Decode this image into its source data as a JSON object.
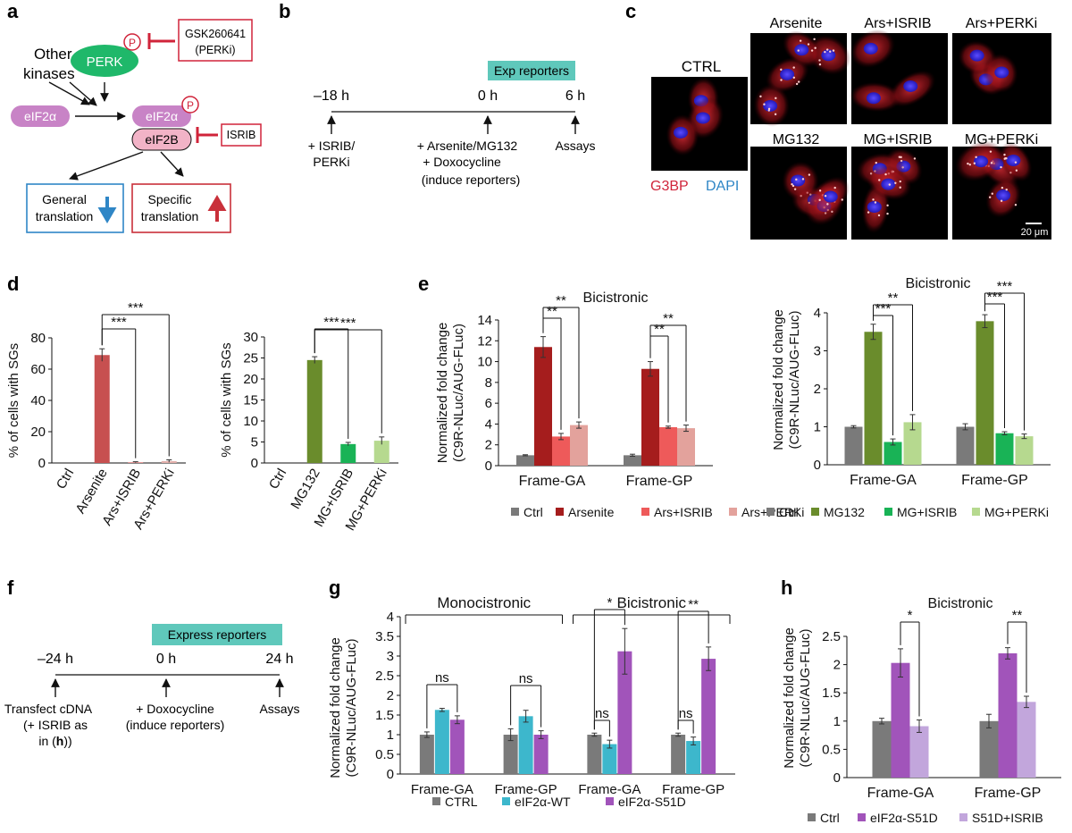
{
  "panel_labels": {
    "a": "a",
    "b": "b",
    "c": "c",
    "d": "d",
    "e": "e",
    "f": "f",
    "g": "g",
    "h": "h"
  },
  "colors": {
    "ctrl": "#7a7a7a",
    "arsenite": "#a51d1d",
    "ars_isrib": "#ee5a5a",
    "ars_perki": "#e3a29c",
    "mg132": "#6a8c2c",
    "mg_isrib": "#19b356",
    "mg_perki": "#b6d98f",
    "wt": "#3db7cc",
    "s51d": "#a154ba",
    "s51d_isrib": "#c2a6dc",
    "inhibit": "#d0243a",
    "kinase": "#1fb86a",
    "eif": "#c883c6",
    "eif2b": "#f2b3c7",
    "general_box": "#2f86c6",
    "specific_box": "#c9303a",
    "teal": "#5fc8bb"
  },
  "panel_a": {
    "perk": "PERK",
    "phospho": "P",
    "other_kinases_1": "Other",
    "other_kinases_2": "kinases",
    "eif2a": "eIF2α",
    "eif2a_p": "eIF2α",
    "eif2b": "eIF2B",
    "gsk_1": "GSK260641",
    "gsk_2": "(PERKi)",
    "isrib": "ISRIB",
    "general_1": "General",
    "general_2": "translation",
    "specific_1": "Specific",
    "specific_2": "translation"
  },
  "panel_b": {
    "exp_reporters": "Exp reporters",
    "t1": "–18 h",
    "t2": "0 h",
    "t3": "6 h",
    "l1a": "+ ISRIB/",
    "l1b": "PERKi",
    "l2a": "+ Arsenite/MG132",
    "l2b": "+ Doxocycline",
    "l2c": "(induce reporters)",
    "l3": "Assays"
  },
  "panel_c": {
    "ctrl": "CTRL",
    "arsenite": "Arsenite",
    "ars_isrib": "Ars+ISRIB",
    "ars_perki": "Ars+PERKi",
    "mg132": "MG132",
    "mg_isrib": "MG+ISRIB",
    "mg_perki": "MG+PERKi",
    "g3bp": "G3BP",
    "dapi": "DAPI",
    "scale": "20 μm"
  },
  "panel_f": {
    "express_reporters": "Express reporters",
    "t1": "–24 h",
    "t2": "0 h",
    "t3": "24 h",
    "l1a": "Transfect cDNA",
    "l1b": "(+ ISRIB as",
    "l1c_pre": "in (",
    "l1c_bold": "h",
    "l1c_post": "))",
    "l2a": "+ Doxocycline",
    "l2b": "(induce reporters)",
    "l3": "Assays"
  },
  "chart_data": [
    {
      "id": "d1",
      "type": "bar",
      "categories": [
        "Ctrl",
        "Arsenite",
        "Ars+ISRIB",
        "Ars+PERKi"
      ],
      "values": [
        0,
        69,
        0.5,
        1.2
      ],
      "errors": [
        0,
        4,
        0.3,
        0.8
      ],
      "colors": [
        "#7a7a7a",
        "#c75050",
        "#e58c8c",
        "#e3b0ac"
      ],
      "title": "",
      "xlabel": "",
      "ylabel": "% of cells with SGs",
      "ylim": [
        0,
        80
      ],
      "yticks": [
        "0",
        "20",
        "40",
        "60",
        "80"
      ],
      "significance": [
        {
          "from": 1,
          "to": 2,
          "label": "***"
        },
        {
          "from": 1,
          "to": 3,
          "label": "***"
        }
      ]
    },
    {
      "id": "d2",
      "type": "bar",
      "categories": [
        "Ctrl",
        "MG132",
        "MG+ISRIB",
        "MG+PERKi"
      ],
      "values": [
        0,
        24.5,
        4.5,
        5.3
      ],
      "errors": [
        0,
        0.8,
        0.4,
        0.9
      ],
      "colors": [
        "#7a7a7a",
        "#6a8c2c",
        "#19b356",
        "#b6d98f"
      ],
      "title": "",
      "xlabel": "",
      "ylabel": "% of cells with SGs",
      "ylim": [
        0,
        30
      ],
      "yticks": [
        "0",
        "5",
        "10",
        "15",
        "20",
        "25",
        "30"
      ],
      "significance": [
        {
          "from": 1,
          "to": 2,
          "label": "***"
        },
        {
          "from": 1,
          "to": 3,
          "label": "***"
        }
      ]
    },
    {
      "id": "e1",
      "type": "bar",
      "title": "Bicistronic",
      "ylabel_1": "Normalized fold change",
      "ylabel_2": "(C9R-NLuc/AUG-FLuc)",
      "categories": [
        "Frame-GA",
        "Frame-GP"
      ],
      "series": [
        {
          "name": "Ctrl",
          "color": "#7a7a7a",
          "values": [
            1.0,
            1.0
          ],
          "errors": [
            0.05,
            0.1
          ]
        },
        {
          "name": "Arsenite",
          "color": "#a51d1d",
          "values": [
            11.4,
            9.3
          ],
          "errors": [
            1.0,
            0.7
          ]
        },
        {
          "name": "Ars+ISRIB",
          "color": "#ee5a5a",
          "values": [
            2.8,
            3.7
          ],
          "errors": [
            0.3,
            0.1
          ]
        },
        {
          "name": "Ars+PERKi",
          "color": "#e3a29c",
          "values": [
            3.9,
            3.6
          ],
          "errors": [
            0.3,
            0.3
          ]
        }
      ],
      "ylim": [
        0,
        14
      ],
      "yticks": [
        "0",
        "2",
        "4",
        "6",
        "8",
        "10",
        "12",
        "14"
      ],
      "significance": [
        {
          "group": 0,
          "from": 1,
          "to": 2,
          "label": "**"
        },
        {
          "group": 0,
          "from": 1,
          "to": 3,
          "label": "**"
        },
        {
          "group": 1,
          "from": 1,
          "to": 2,
          "label": "**"
        },
        {
          "group": 1,
          "from": 1,
          "to": 3,
          "label": "**"
        }
      ]
    },
    {
      "id": "e2",
      "type": "bar",
      "title": "Bicistronic",
      "ylabel_1": "Normalized fold change",
      "ylabel_2": "(C9R-NLuc/AUG-FLuc)",
      "categories": [
        "Frame-GA",
        "Frame-GP"
      ],
      "series": [
        {
          "name": "Ctrl",
          "color": "#7a7a7a",
          "values": [
            1.0,
            1.0
          ],
          "errors": [
            0.03,
            0.08
          ]
        },
        {
          "name": "MG132",
          "color": "#6a8c2c",
          "values": [
            3.5,
            3.78
          ],
          "errors": [
            0.2,
            0.17
          ]
        },
        {
          "name": "MG+ISRIB",
          "color": "#19b356",
          "values": [
            0.6,
            0.83
          ],
          "errors": [
            0.08,
            0.04
          ]
        },
        {
          "name": "MG+PERKi",
          "color": "#b6d98f",
          "values": [
            1.12,
            0.75
          ],
          "errors": [
            0.2,
            0.06
          ]
        }
      ],
      "ylim": [
        0,
        4
      ],
      "yticks": [
        "0",
        "1",
        "2",
        "3",
        "4"
      ],
      "significance": [
        {
          "group": 0,
          "from": 1,
          "to": 2,
          "label": "***"
        },
        {
          "group": 0,
          "from": 1,
          "to": 3,
          "label": "**"
        },
        {
          "group": 1,
          "from": 1,
          "to": 2,
          "label": "***"
        },
        {
          "group": 1,
          "from": 1,
          "to": 3,
          "label": "***"
        }
      ]
    },
    {
      "id": "g",
      "type": "bar",
      "title": "",
      "ylabel_1": "Normalized fold change",
      "ylabel_2": "(C9R-NLuc/AUG-FLuc)",
      "categories": [
        "Frame-GA",
        "Frame-GP",
        "Frame-GA",
        "Frame-GP"
      ],
      "group_labels": [
        {
          "label": "Monocistronic",
          "from": 0,
          "to": 1
        },
        {
          "label": "Bicistronic",
          "from": 2,
          "to": 3
        }
      ],
      "series": [
        {
          "name": "CTRL",
          "color": "#7a7a7a",
          "values": [
            1.0,
            1.0,
            1.0,
            1.0
          ],
          "errors": [
            0.07,
            0.15,
            0.04,
            0.04
          ]
        },
        {
          "name": "eIF2α-WT",
          "color": "#3db7cc",
          "values": [
            1.63,
            1.47,
            0.76,
            0.84
          ],
          "errors": [
            0.04,
            0.15,
            0.1,
            0.1
          ]
        },
        {
          "name": "eIF2α-S51D",
          "color": "#a154ba",
          "values": [
            1.38,
            1.0,
            3.12,
            2.93
          ],
          "errors": [
            0.1,
            0.1,
            0.58,
            0.3
          ]
        }
      ],
      "ylim": [
        0,
        4
      ],
      "yticks": [
        "0",
        "0.5",
        "1",
        "1.5",
        "2",
        "2.5",
        "3",
        "3.5",
        "4"
      ],
      "significance": [
        {
          "group": 0,
          "from": 0,
          "to": 2,
          "label": "ns"
        },
        {
          "group": 1,
          "from": 0,
          "to": 2,
          "label": "ns"
        },
        {
          "group": 2,
          "from": 0,
          "to": 1,
          "label": "ns"
        },
        {
          "group": 2,
          "from": 0,
          "to": 2,
          "label": "*"
        },
        {
          "group": 3,
          "from": 0,
          "to": 1,
          "label": "ns"
        },
        {
          "group": 3,
          "from": 0,
          "to": 2,
          "label": "**"
        }
      ]
    },
    {
      "id": "h",
      "type": "bar",
      "title": "Bicistronic",
      "ylabel_1": "Normalized fold change",
      "ylabel_2": "(C9R-NLuc/AUG-FLuc)",
      "categories": [
        "Frame-GA",
        "Frame-GP"
      ],
      "series": [
        {
          "name": "Ctrl",
          "color": "#7a7a7a",
          "values": [
            1.0,
            1.0
          ],
          "errors": [
            0.05,
            0.12
          ]
        },
        {
          "name": "eIF2α-S51D",
          "color": "#a154ba",
          "values": [
            2.03,
            2.2
          ],
          "errors": [
            0.25,
            0.1
          ]
        },
        {
          "name": "S51D+ISRIB",
          "color": "#c2a6dc",
          "values": [
            0.91,
            1.34
          ],
          "errors": [
            0.11,
            0.1
          ]
        }
      ],
      "ylim": [
        0,
        2.5
      ],
      "yticks": [
        "0",
        "0.5",
        "1",
        "1.5",
        "2",
        "2.5"
      ],
      "significance": [
        {
          "group": 0,
          "from": 1,
          "to": 2,
          "label": "*"
        },
        {
          "group": 1,
          "from": 1,
          "to": 2,
          "label": "**"
        }
      ]
    }
  ]
}
